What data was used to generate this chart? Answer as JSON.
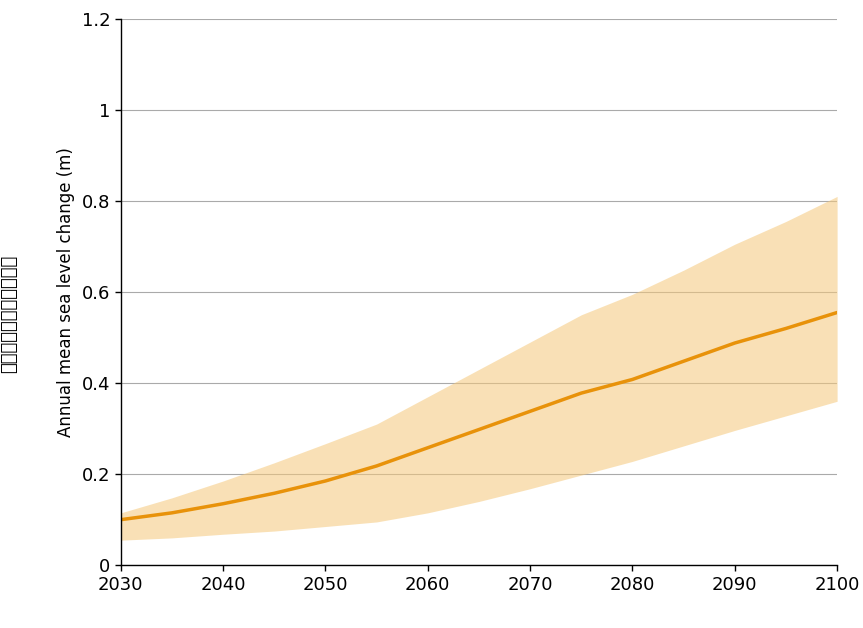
{
  "years": [
    2030,
    2035,
    2040,
    2045,
    2050,
    2055,
    2060,
    2065,
    2070,
    2075,
    2080,
    2085,
    2090,
    2095,
    2100
  ],
  "mean": [
    0.1,
    0.115,
    0.135,
    0.158,
    0.185,
    0.218,
    0.258,
    0.298,
    0.338,
    0.378,
    0.408,
    0.448,
    0.488,
    0.52,
    0.555
  ],
  "lower": [
    0.055,
    0.06,
    0.068,
    0.075,
    0.085,
    0.095,
    0.115,
    0.14,
    0.168,
    0.198,
    0.228,
    0.262,
    0.296,
    0.328,
    0.36
  ],
  "upper": [
    0.115,
    0.148,
    0.185,
    0.225,
    0.267,
    0.31,
    0.37,
    0.43,
    0.49,
    0.55,
    0.595,
    0.648,
    0.705,
    0.755,
    0.81
  ],
  "line_color": "#E8920A",
  "fill_color": "#F5C87A",
  "fill_alpha": 0.55,
  "ylabel_chinese": "年平均海平面變化（米）",
  "ylabel_english": "Annual mean sea level change (m)",
  "xlim": [
    2030,
    2100
  ],
  "ylim": [
    0,
    1.2
  ],
  "xticks": [
    2030,
    2040,
    2050,
    2060,
    2070,
    2080,
    2090,
    2100
  ],
  "yticks": [
    0,
    0.2,
    0.4,
    0.6,
    0.8,
    1.0,
    1.2
  ],
  "grid_color": "#AAAAAA",
  "background_color": "#ffffff",
  "line_width": 2.5,
  "figsize": [
    8.63,
    6.28
  ],
  "dpi": 100
}
